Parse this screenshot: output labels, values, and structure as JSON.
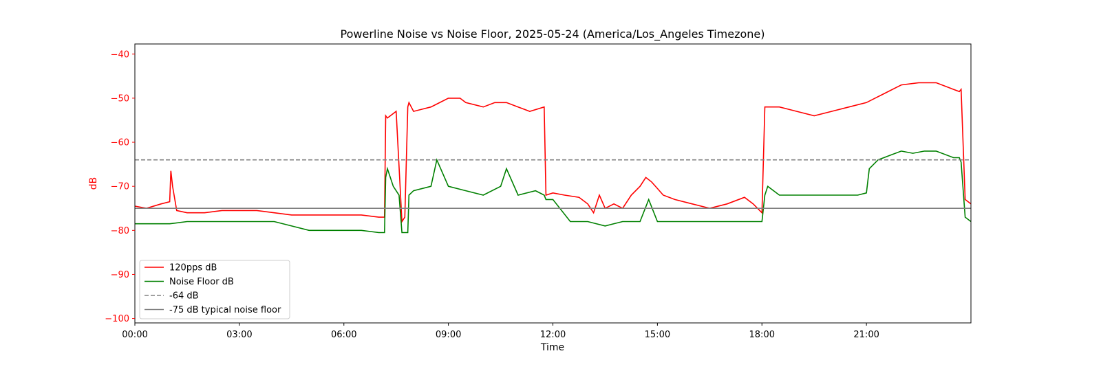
{
  "chart_data": {
    "type": "line",
    "title": "Powerline Noise vs Noise Floor, 2025-05-24 (America/Los_Angeles Timezone)",
    "xlabel": "Time",
    "ylabel": "dB",
    "xlim": [
      "00:00",
      "24:00"
    ],
    "ylim": [
      -101,
      -37.7
    ],
    "x_ticks": [
      "00:00",
      "03:00",
      "06:00",
      "09:00",
      "12:00",
      "15:00",
      "18:00",
      "21:00"
    ],
    "y_ticks": [
      -40,
      -50,
      -60,
      -70,
      -80,
      -90,
      -100
    ],
    "y_tick_labels": [
      "−40",
      "−50",
      "−60",
      "−70",
      "−80",
      "−90",
      "−100"
    ],
    "grid": false,
    "legend_position": "lower-left",
    "ylabel_color": "#ff0000",
    "series": [
      {
        "name": "120pps dB",
        "color": "#ff0000",
        "style": "solid",
        "x": [
          "00:00",
          "00:20",
          "00:45",
          "01:00",
          "01:02",
          "01:05",
          "01:12",
          "01:30",
          "02:00",
          "02:30",
          "03:00",
          "03:30",
          "04:00",
          "04:30",
          "05:00",
          "05:30",
          "06:00",
          "06:30",
          "07:00",
          "07:10",
          "07:12",
          "07:15",
          "07:30",
          "07:40",
          "07:45",
          "07:50",
          "07:52",
          "08:00",
          "08:15",
          "08:30",
          "09:00",
          "09:20",
          "09:30",
          "10:00",
          "10:20",
          "10:40",
          "11:00",
          "11:20",
          "11:45",
          "11:48",
          "12:00",
          "12:20",
          "12:45",
          "13:00",
          "13:10",
          "13:20",
          "13:30",
          "13:45",
          "14:00",
          "14:15",
          "14:30",
          "14:40",
          "14:50",
          "15:00",
          "15:10",
          "15:30",
          "16:00",
          "16:30",
          "17:00",
          "17:30",
          "17:45",
          "18:00",
          "18:05",
          "18:10",
          "18:30",
          "19:00",
          "19:30",
          "20:00",
          "20:30",
          "21:00",
          "21:30",
          "22:00",
          "22:30",
          "23:00",
          "23:30",
          "23:40",
          "23:43",
          "23:50",
          "24:00"
        ],
        "values": [
          -74.5,
          -75,
          -74,
          -73.5,
          -66.5,
          -70,
          -75.5,
          -76,
          -76,
          -75.5,
          -75.5,
          -75.5,
          -76,
          -76.5,
          -76.5,
          -76.5,
          -76.5,
          -76.5,
          -77,
          -77,
          -54,
          -54.5,
          -53,
          -78,
          -77,
          -52,
          -51,
          -53,
          -52.5,
          -52,
          -50,
          -50,
          -51,
          -52,
          -51,
          -51,
          -52,
          -53,
          -52,
          -72,
          -71.5,
          -72,
          -72.5,
          -74,
          -76,
          -72,
          -75,
          -74,
          -75,
          -72,
          -70,
          -68,
          -69,
          -70.5,
          -72,
          -73,
          -74,
          -75,
          -74,
          -72.5,
          -74,
          -76,
          -52,
          -52,
          -52,
          -53,
          -54,
          -53,
          -52,
          -51,
          -49,
          -47,
          -46.5,
          -46.5,
          -48,
          -48.5,
          -48,
          -73,
          -74
        ]
      },
      {
        "name": "Noise Floor dB",
        "color": "#008000",
        "style": "solid",
        "x": [
          "00:00",
          "00:30",
          "01:00",
          "01:30",
          "02:00",
          "02:30",
          "03:00",
          "03:30",
          "04:00",
          "04:30",
          "05:00",
          "05:30",
          "06:00",
          "06:30",
          "07:00",
          "07:10",
          "07:12",
          "07:15",
          "07:25",
          "07:35",
          "07:40",
          "07:50",
          "07:52",
          "08:00",
          "08:30",
          "08:40",
          "09:00",
          "09:30",
          "10:00",
          "10:30",
          "10:40",
          "11:00",
          "11:30",
          "11:45",
          "11:48",
          "12:00",
          "12:30",
          "13:00",
          "13:30",
          "14:00",
          "14:30",
          "14:45",
          "15:00",
          "15:30",
          "16:00",
          "16:30",
          "17:00",
          "17:30",
          "17:55",
          "18:00",
          "18:05",
          "18:10",
          "18:30",
          "19:00",
          "19:30",
          "20:00",
          "20:30",
          "20:45",
          "21:00",
          "21:05",
          "21:20",
          "21:40",
          "22:00",
          "22:20",
          "22:40",
          "23:00",
          "23:30",
          "23:40",
          "23:43",
          "23:50",
          "24:00"
        ],
        "values": [
          -78.5,
          -78.5,
          -78.5,
          -78,
          -78,
          -78,
          -78,
          -78,
          -78,
          -79,
          -80,
          -80,
          -80,
          -80,
          -80.5,
          -80.5,
          -68,
          -66,
          -70,
          -72,
          -80.5,
          -80.5,
          -72,
          -71,
          -70,
          -64,
          -70,
          -71,
          -72,
          -70,
          -66,
          -72,
          -71,
          -72,
          -73,
          -73,
          -78,
          -78,
          -79,
          -78,
          -78,
          -73,
          -78,
          -78,
          -78,
          -78,
          -78,
          -78,
          -78,
          -78,
          -72,
          -70,
          -72,
          -72,
          -72,
          -72,
          -72,
          -72,
          -71.5,
          -66,
          -64,
          -63,
          -62,
          -62.5,
          -62,
          -62,
          -63.5,
          -63.5,
          -64.5,
          -77,
          -78
        ]
      },
      {
        "name": "-64 dB",
        "color": "#808080",
        "style": "dashed",
        "x": [
          "00:00",
          "24:00"
        ],
        "values": [
          -64,
          -64
        ]
      },
      {
        "name": "-75 dB typical noise floor",
        "color": "#808080",
        "style": "solid",
        "x": [
          "00:00",
          "24:00"
        ],
        "values": [
          -75,
          -75
        ]
      }
    ]
  }
}
